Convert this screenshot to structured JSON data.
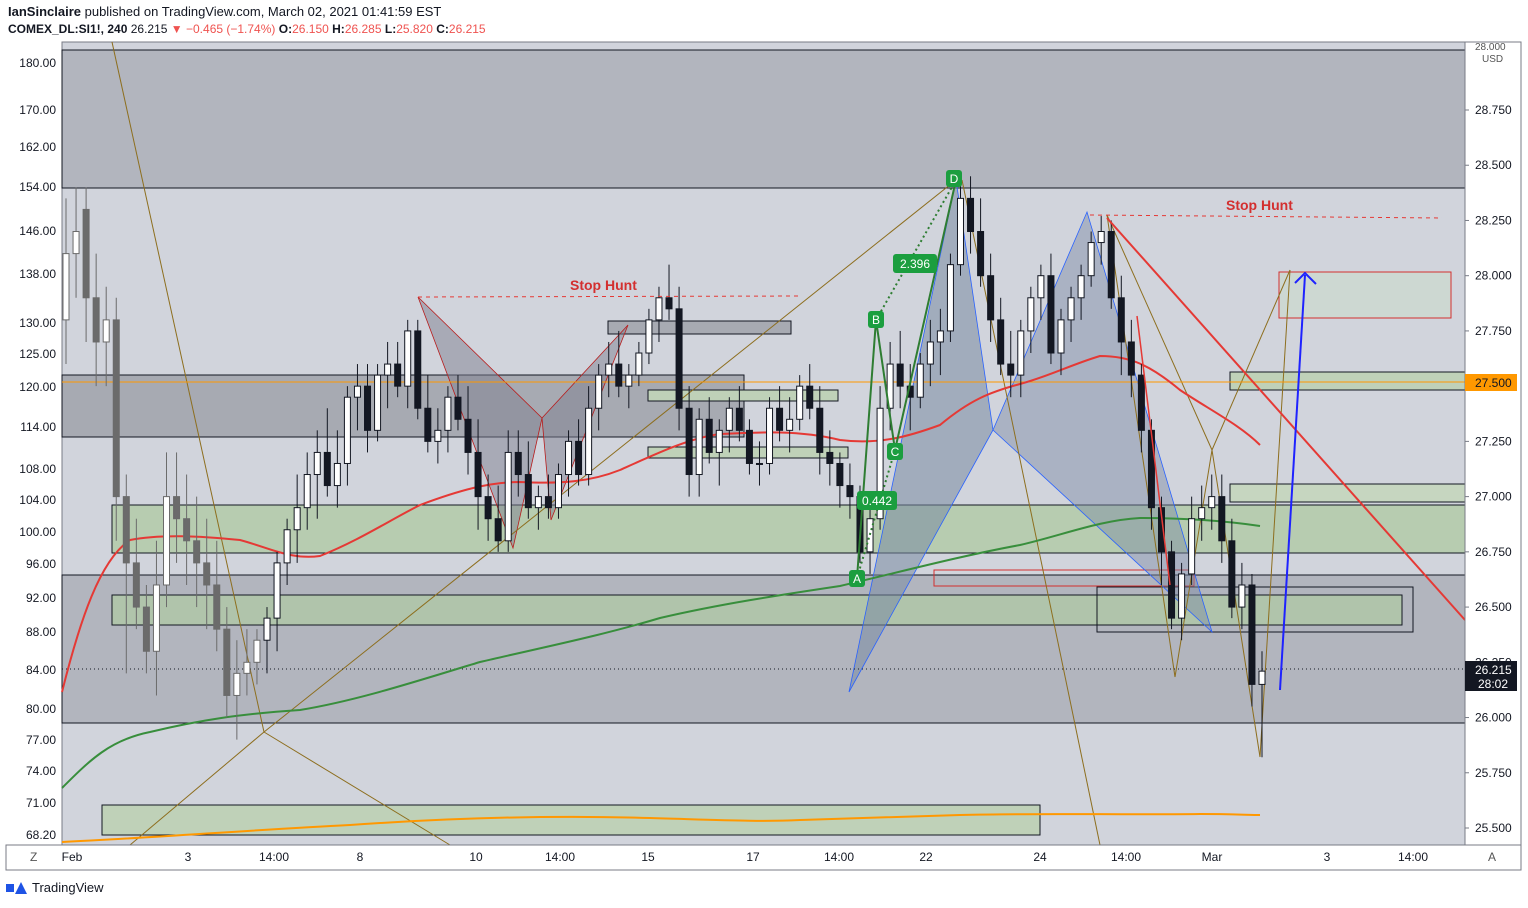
{
  "header": {
    "author": "IanSinclaire",
    "published": "published on TradingView.com, March 02, 2021 01:41:59 EST",
    "symbol": "COMEX_DL:SI1!, 240",
    "last": "26.215",
    "change": "−0.465 (−1.74%)",
    "o_label": "O:",
    "o": "26.150",
    "h_label": "H:",
    "h": "26.285",
    "l_label": "L:",
    "l": "25.820",
    "c_label": "C:",
    "c": "26.215"
  },
  "brand": "TradingView",
  "chart_data": {
    "type": "candlestick",
    "right_axis": {
      "unit": "USD",
      "top_partial": "28.000",
      "ticks": [
        "28.750",
        "28.500",
        "28.250",
        "28.000",
        "27.750",
        "27.500",
        "27.250",
        "27.000",
        "26.750",
        "26.500",
        "26.250",
        "26.000",
        "25.750",
        "25.500"
      ],
      "range": [
        25.45,
        29.0
      ],
      "highlight_level": "27.500",
      "last_price": "26.215",
      "countdown": "28:02"
    },
    "left_axis": {
      "ticks": [
        "180.00",
        "170.00",
        "162.00",
        "154.00",
        "146.00",
        "138.00",
        "130.00",
        "125.00",
        "120.00",
        "114.00",
        "108.00",
        "104.00",
        "100.00",
        "96.00",
        "92.00",
        "88.00",
        "84.00",
        "80.00",
        "77.00",
        "74.00",
        "71.00",
        "68.20"
      ]
    },
    "x_axis": {
      "ticks": [
        "Feb",
        "3",
        "14:00",
        "8",
        "10",
        "14:00",
        "15",
        "17",
        "14:00",
        "22",
        "24",
        "14:00",
        "Mar",
        "3",
        "14:00"
      ],
      "left_button": "Z",
      "right_button": "A"
    },
    "annotations": {
      "stop_hunt_1": "Stop Hunt",
      "stop_hunt_2": "Stop Hunt",
      "pattern_points": [
        "A",
        "B",
        "C",
        "D"
      ],
      "ratios": [
        "0.442",
        "2.396"
      ]
    },
    "candles": [
      [
        27.8,
        28.35,
        27.6,
        28.1
      ],
      [
        28.1,
        28.4,
        27.9,
        28.2
      ],
      [
        28.3,
        28.4,
        27.7,
        27.9
      ],
      [
        27.9,
        28.1,
        27.5,
        27.7
      ],
      [
        27.7,
        27.95,
        27.5,
        27.8
      ],
      [
        27.8,
        27.9,
        26.8,
        27.0
      ],
      [
        27.0,
        27.1,
        26.2,
        26.7
      ],
      [
        26.7,
        26.9,
        26.4,
        26.5
      ],
      [
        26.5,
        26.6,
        26.2,
        26.3
      ],
      [
        26.3,
        26.8,
        26.1,
        26.6
      ],
      [
        26.6,
        27.2,
        26.5,
        27.0
      ],
      [
        27.0,
        27.2,
        26.7,
        26.9
      ],
      [
        26.9,
        27.1,
        26.6,
        26.8
      ],
      [
        26.8,
        27.0,
        26.5,
        26.7
      ],
      [
        26.7,
        26.9,
        26.4,
        26.6
      ],
      [
        26.6,
        26.8,
        26.3,
        26.4
      ],
      [
        26.4,
        26.5,
        26.0,
        26.1
      ],
      [
        26.1,
        26.35,
        25.9,
        26.2
      ],
      [
        26.2,
        26.4,
        26.1,
        26.25
      ],
      [
        26.25,
        26.4,
        26.15,
        26.35
      ],
      [
        26.35,
        26.5,
        26.2,
        26.45
      ],
      [
        26.45,
        26.75,
        26.3,
        26.7
      ],
      [
        26.7,
        26.9,
        26.6,
        26.85
      ],
      [
        26.85,
        27.1,
        26.7,
        26.95
      ],
      [
        26.95,
        27.2,
        26.85,
        27.1
      ],
      [
        27.1,
        27.3,
        26.9,
        27.2
      ],
      [
        27.2,
        27.4,
        27.0,
        27.05
      ],
      [
        27.05,
        27.3,
        26.95,
        27.15
      ],
      [
        27.15,
        27.5,
        27.05,
        27.45
      ],
      [
        27.45,
        27.6,
        27.3,
        27.5
      ],
      [
        27.5,
        27.6,
        27.2,
        27.3
      ],
      [
        27.3,
        27.6,
        27.25,
        27.55
      ],
      [
        27.55,
        27.7,
        27.4,
        27.6
      ],
      [
        27.6,
        27.7,
        27.45,
        27.5
      ],
      [
        27.5,
        27.8,
        27.4,
        27.75
      ],
      [
        27.75,
        27.8,
        27.35,
        27.4
      ],
      [
        27.4,
        27.55,
        27.2,
        27.25
      ],
      [
        27.25,
        27.4,
        27.15,
        27.3
      ],
      [
        27.3,
        27.5,
        27.2,
        27.45
      ],
      [
        27.45,
        27.55,
        27.3,
        27.35
      ],
      [
        27.35,
        27.5,
        27.1,
        27.2
      ],
      [
        27.2,
        27.35,
        26.85,
        27.0
      ],
      [
        27.0,
        27.1,
        26.8,
        26.9
      ],
      [
        26.9,
        27.05,
        26.75,
        26.8
      ],
      [
        26.8,
        27.3,
        26.75,
        27.2
      ],
      [
        27.2,
        27.3,
        27.0,
        27.1
      ],
      [
        27.1,
        27.25,
        26.9,
        26.95
      ],
      [
        26.95,
        27.05,
        26.85,
        27.0
      ],
      [
        27.0,
        27.1,
        26.9,
        26.95
      ],
      [
        26.95,
        27.15,
        26.9,
        27.1
      ],
      [
        27.1,
        27.3,
        27.0,
        27.25
      ],
      [
        27.25,
        27.35,
        27.05,
        27.1
      ],
      [
        27.1,
        27.5,
        27.05,
        27.4
      ],
      [
        27.4,
        27.6,
        27.3,
        27.55
      ],
      [
        27.55,
        27.7,
        27.45,
        27.6
      ],
      [
        27.6,
        27.75,
        27.45,
        27.5
      ],
      [
        27.5,
        27.6,
        27.4,
        27.55
      ],
      [
        27.55,
        27.7,
        27.5,
        27.65
      ],
      [
        27.65,
        27.85,
        27.6,
        27.8
      ],
      [
        27.8,
        27.95,
        27.7,
        27.9
      ],
      [
        27.9,
        28.05,
        27.8,
        27.85
      ],
      [
        27.85,
        27.95,
        27.3,
        27.4
      ],
      [
        27.4,
        27.5,
        27.0,
        27.1
      ],
      [
        27.1,
        27.4,
        27.0,
        27.35
      ],
      [
        27.35,
        27.45,
        27.15,
        27.2
      ],
      [
        27.2,
        27.35,
        27.05,
        27.3
      ],
      [
        27.3,
        27.45,
        27.2,
        27.4
      ],
      [
        27.4,
        27.5,
        27.25,
        27.3
      ],
      [
        27.3,
        27.35,
        27.1,
        27.15
      ],
      [
        27.15,
        27.25,
        27.05,
        27.15
      ],
      [
        27.15,
        27.45,
        27.1,
        27.4
      ],
      [
        27.4,
        27.5,
        27.25,
        27.3
      ],
      [
        27.3,
        27.45,
        27.2,
        27.35
      ],
      [
        27.35,
        27.55,
        27.3,
        27.5
      ],
      [
        27.5,
        27.6,
        27.35,
        27.4
      ],
      [
        27.4,
        27.5,
        27.1,
        27.2
      ],
      [
        27.2,
        27.3,
        27.05,
        27.15
      ],
      [
        27.15,
        27.2,
        26.95,
        27.05
      ],
      [
        27.05,
        27.15,
        26.9,
        27.0
      ],
      [
        27.0,
        27.05,
        26.7,
        26.75
      ],
      [
        26.75,
        27.0,
        26.65,
        26.9
      ],
      [
        26.9,
        27.5,
        26.85,
        27.4
      ],
      [
        27.4,
        27.7,
        27.3,
        27.6
      ],
      [
        27.6,
        27.75,
        27.4,
        27.5
      ],
      [
        27.5,
        27.6,
        27.3,
        27.45
      ],
      [
        27.45,
        27.65,
        27.4,
        27.6
      ],
      [
        27.6,
        27.8,
        27.5,
        27.7
      ],
      [
        27.7,
        27.85,
        27.55,
        27.75
      ],
      [
        27.75,
        28.1,
        27.7,
        28.05
      ],
      [
        28.05,
        28.45,
        28.0,
        28.35
      ],
      [
        28.35,
        28.45,
        28.1,
        28.2
      ],
      [
        28.2,
        28.35,
        27.95,
        28.0
      ],
      [
        28.0,
        28.1,
        27.7,
        27.8
      ],
      [
        27.8,
        27.9,
        27.55,
        27.6
      ],
      [
        27.6,
        27.75,
        27.45,
        27.55
      ],
      [
        27.55,
        27.8,
        27.45,
        27.75
      ],
      [
        27.75,
        27.95,
        27.65,
        27.9
      ],
      [
        27.9,
        28.05,
        27.8,
        28.0
      ],
      [
        28.0,
        28.1,
        27.6,
        27.65
      ],
      [
        27.65,
        27.85,
        27.55,
        27.8
      ],
      [
        27.8,
        27.95,
        27.7,
        27.9
      ],
      [
        27.9,
        28.05,
        27.8,
        28.0
      ],
      [
        28.0,
        28.2,
        27.95,
        28.15
      ],
      [
        28.15,
        28.27,
        28.05,
        28.2
      ],
      [
        28.2,
        28.25,
        27.85,
        27.9
      ],
      [
        27.9,
        28.0,
        27.55,
        27.7
      ],
      [
        27.7,
        27.8,
        27.45,
        27.55
      ],
      [
        27.55,
        27.6,
        27.2,
        27.3
      ],
      [
        27.3,
        27.35,
        26.85,
        26.95
      ],
      [
        26.95,
        27.0,
        26.6,
        26.75
      ],
      [
        26.75,
        26.8,
        26.4,
        26.45
      ],
      [
        26.45,
        26.7,
        26.35,
        26.65
      ],
      [
        26.65,
        27.0,
        26.6,
        26.9
      ],
      [
        26.9,
        27.05,
        26.8,
        26.95
      ],
      [
        26.95,
        27.1,
        26.85,
        27.0
      ],
      [
        27.0,
        27.1,
        26.7,
        26.8
      ],
      [
        26.8,
        26.9,
        26.45,
        26.5
      ],
      [
        26.5,
        26.7,
        26.4,
        26.6
      ],
      [
        26.6,
        26.65,
        26.05,
        26.15
      ],
      [
        26.15,
        26.3,
        25.82,
        26.21
      ]
    ]
  }
}
